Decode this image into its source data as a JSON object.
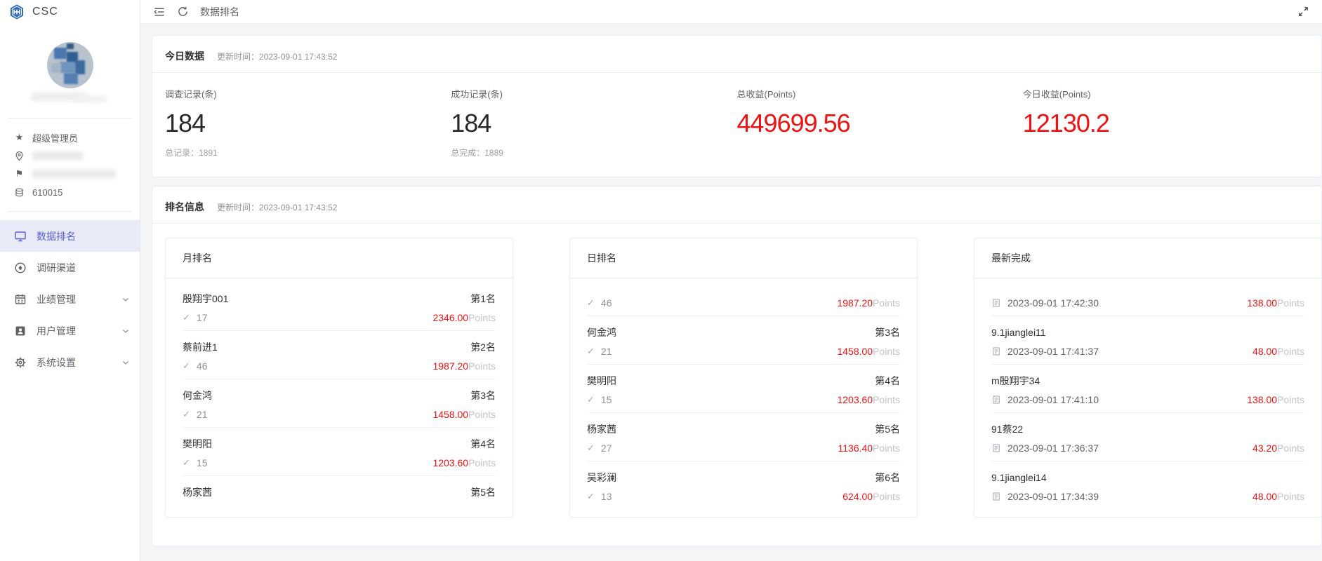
{
  "app": {
    "logo": "CSC"
  },
  "topbar": {
    "breadcrumb": "数据排名"
  },
  "sidebar": {
    "profile": {
      "role": "超级管理员",
      "id": "610015"
    },
    "nav": [
      {
        "label": "数据排名",
        "active": true,
        "expandable": false
      },
      {
        "label": "调研渠道",
        "active": false,
        "expandable": false
      },
      {
        "label": "业绩管理",
        "active": false,
        "expandable": true
      },
      {
        "label": "用户管理",
        "active": false,
        "expandable": true
      },
      {
        "label": "系统设置",
        "active": false,
        "expandable": true
      }
    ]
  },
  "today": {
    "title": "今日数据",
    "updated": "更新时间：2023-09-01 17:43:52",
    "stats": [
      {
        "label": "调查记录(条)",
        "value": "184",
        "sub": "总记录：1891",
        "value_color": "dark"
      },
      {
        "label": "成功记录(条)",
        "value": "184",
        "sub": "总完成：1889",
        "value_color": "dark"
      },
      {
        "label": "总收益(Points)",
        "value": "449699.56",
        "sub": "",
        "value_color": "red"
      },
      {
        "label": "今日收益(Points)",
        "value": "12130.2",
        "sub": "",
        "value_color": "red"
      }
    ]
  },
  "ranking": {
    "title": "排名信息",
    "updated": "更新时间：2023-09-01 17:43:52",
    "points_suffix": "Points",
    "cards": [
      {
        "title": "月排名",
        "type": "rank",
        "items": [
          {
            "name": "殷翔宇001",
            "rank": "第1名",
            "count": "17",
            "points": "2346.00"
          },
          {
            "name": "蔡前进1",
            "rank": "第2名",
            "count": "46",
            "points": "1987.20"
          },
          {
            "name": "何金鸿",
            "rank": "第3名",
            "count": "21",
            "points": "1458.00"
          },
          {
            "name": "樊明阳",
            "rank": "第4名",
            "count": "15",
            "points": "1203.60"
          },
          {
            "name": "杨家茜",
            "rank": "第5名",
            "count": null,
            "points": null
          }
        ]
      },
      {
        "title": "日排名",
        "type": "rank",
        "items": [
          {
            "name": null,
            "rank": null,
            "count": "46",
            "points": "1987.20"
          },
          {
            "name": "何金鸿",
            "rank": "第3名",
            "count": "21",
            "points": "1458.00"
          },
          {
            "name": "樊明阳",
            "rank": "第4名",
            "count": "15",
            "points": "1203.60"
          },
          {
            "name": "杨家茜",
            "rank": "第5名",
            "count": "27",
            "points": "1136.40"
          },
          {
            "name": "吴彩澜",
            "rank": "第6名",
            "count": "13",
            "points": "624.00"
          }
        ]
      },
      {
        "title": "最新完成",
        "type": "latest",
        "items": [
          {
            "name": null,
            "time": "2023-09-01 17:42:30",
            "points": "138.00"
          },
          {
            "name": "9.1jianglei11",
            "time": "2023-09-01 17:41:37",
            "points": "48.00"
          },
          {
            "name": "m殷翔宇34",
            "time": "2023-09-01 17:41:10",
            "points": "138.00"
          },
          {
            "name": "91蔡22",
            "time": "2023-09-01 17:36:37",
            "points": "43.20"
          },
          {
            "name": "9.1jianglei14",
            "time": "2023-09-01 17:34:39",
            "points": "48.00"
          }
        ]
      }
    ]
  },
  "colors": {
    "accent": "#5a5fd3",
    "red": "#f01212"
  }
}
